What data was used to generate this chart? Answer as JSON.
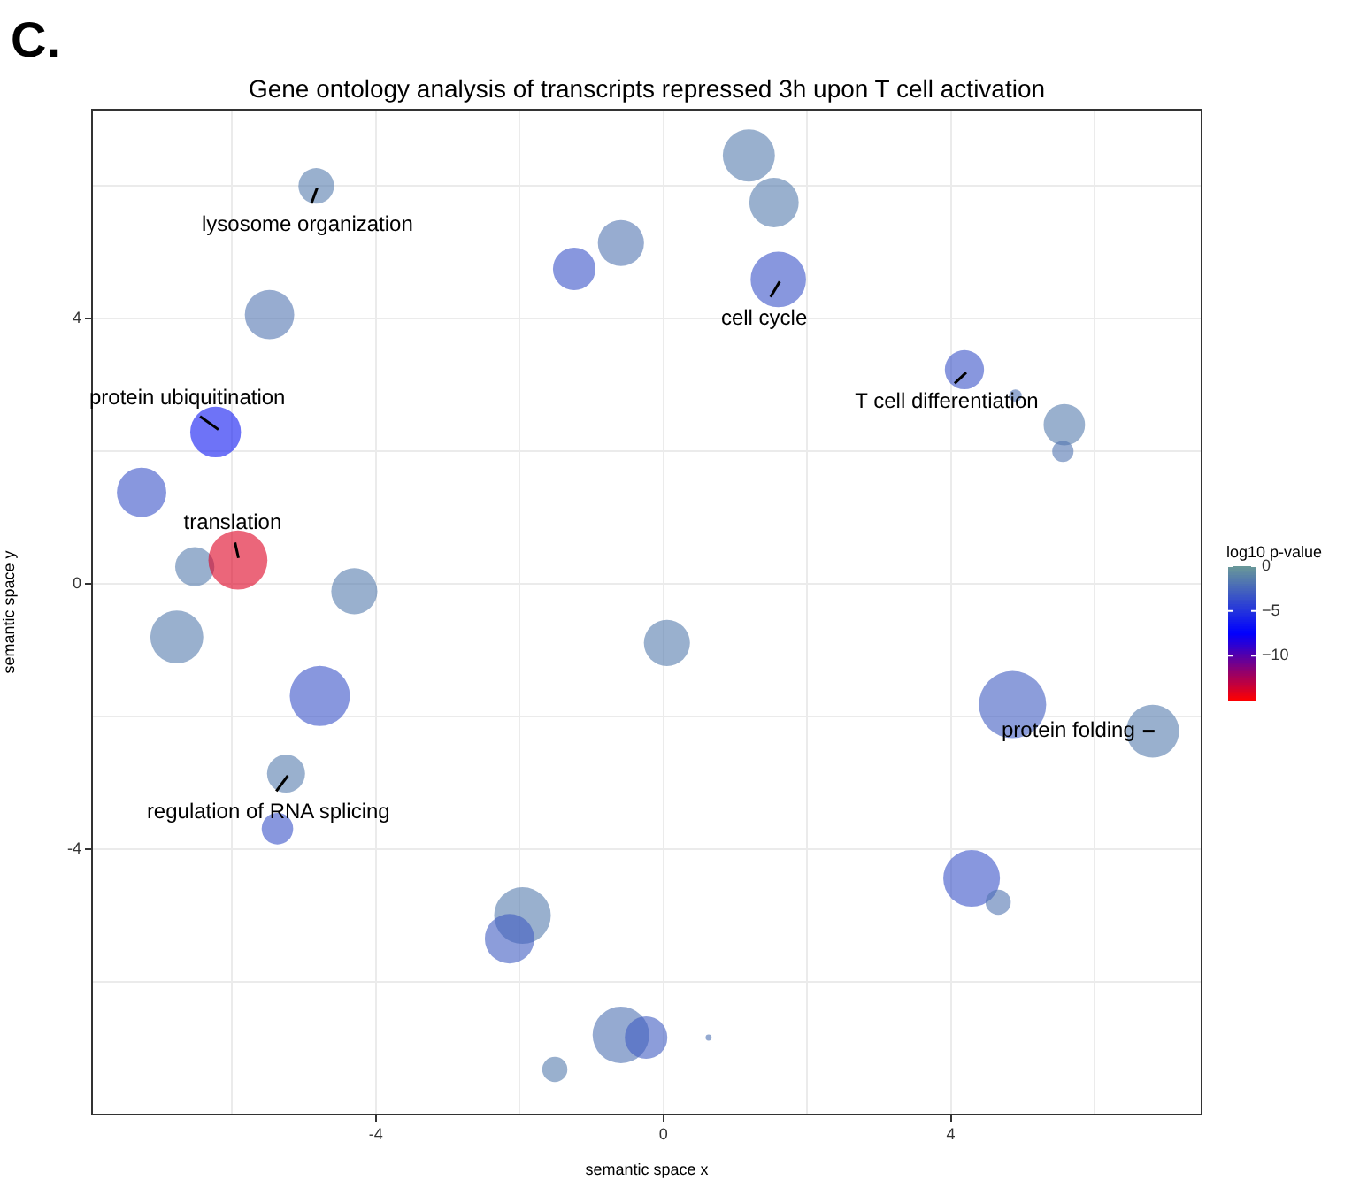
{
  "chart_data": {
    "type": "bubble",
    "title": "Gene ontology analysis of transcripts repressed 3h upon T cell activation",
    "xlabel": "semantic space x",
    "ylabel": "semantic space y",
    "clabel": "log10 p-value",
    "x": [
      -4.83,
      -5.48,
      -6.23,
      -7.26,
      -6.52,
      -5.92,
      -4.3,
      -1.24,
      -0.59,
      1.19,
      1.54,
      1.6,
      4.19,
      4.9,
      5.58,
      5.56,
      -6.77,
      -4.78,
      -5.25,
      -5.37,
      -1.96,
      -2.14,
      -0.59,
      -1.51,
      -0.24,
      0.63,
      0.05,
      4.86,
      6.81,
      4.29,
      4.66
    ],
    "values": [
      6.0,
      4.06,
      2.29,
      1.38,
      0.26,
      0.36,
      -0.11,
      4.75,
      5.14,
      6.46,
      5.75,
      4.59,
      3.23,
      2.84,
      2.4,
      2.0,
      -0.8,
      -1.69,
      -2.86,
      -3.69,
      -5.0,
      -5.35,
      -6.8,
      -7.32,
      -6.84,
      -6.84,
      -0.89,
      -1.82,
      -2.22,
      -4.44,
      -4.8
    ],
    "sizes": [
      0.28,
      0.54,
      0.57,
      0.54,
      0.34,
      0.77,
      0.47,
      0.4,
      0.47,
      0.6,
      0.54,
      0.68,
      0.34,
      0.034,
      0.38,
      0.1,
      0.62,
      0.8,
      0.32,
      0.22,
      0.71,
      0.54,
      0.71,
      0.14,
      0.4,
      0.008,
      0.47,
      1,
      0.62,
      0.71,
      0.14
    ],
    "cvalues": [
      -1.5,
      -1.8,
      -6.5,
      -3.5,
      -1.5,
      -14,
      -1.5,
      -3.5,
      -1.8,
      -1.5,
      -1.5,
      -3.5,
      -3.5,
      -2,
      -1.5,
      -1.8,
      -1.5,
      -3.5,
      -1.5,
      -3.5,
      -1.5,
      -3,
      -2,
      -1.5,
      -3,
      -2,
      -1.5,
      -3,
      -1.5,
      -3.5,
      -1.8
    ],
    "clim": [
      -15,
      0
    ],
    "cticks": [
      0,
      -5,
      -10
    ],
    "xlim": [
      -7.95,
      7.49
    ],
    "ylim": [
      -8.0,
      7.15
    ],
    "xticks": [
      {
        "value": -6,
        "label": null
      },
      -4,
      {
        "value": -2,
        "label": null
      },
      0,
      {
        "value": 2,
        "label": null
      },
      4,
      {
        "value": 6,
        "label": null
      }
    ],
    "yticks": [
      {
        "value": -6,
        "label": null
      },
      -4,
      {
        "value": -2,
        "label": null
      },
      0,
      {
        "value": 2,
        "label": null
      },
      4,
      {
        "value": 6,
        "label": null
      }
    ],
    "grid": true,
    "legend": false,
    "annotations": [
      "C.",
      {
        "text": "lysosome organization",
        "x": -4.83,
        "y": 6.0
      },
      {
        "text": "protein ubiquitination",
        "x": -6.23,
        "y": 2.29
      },
      {
        "text": "translation",
        "x": -5.92,
        "y": 0.36
      },
      {
        "text": "cell cycle",
        "x": 1.6,
        "y": 4.59
      },
      {
        "text": "T cell differentiation",
        "x": 4.19,
        "y": 3.23
      },
      {
        "text": "protein folding",
        "x": 6.81,
        "y": -2.22
      },
      {
        "text": "regulation of RNA splicing",
        "x": -5.25,
        "y": -2.86
      }
    ]
  }
}
